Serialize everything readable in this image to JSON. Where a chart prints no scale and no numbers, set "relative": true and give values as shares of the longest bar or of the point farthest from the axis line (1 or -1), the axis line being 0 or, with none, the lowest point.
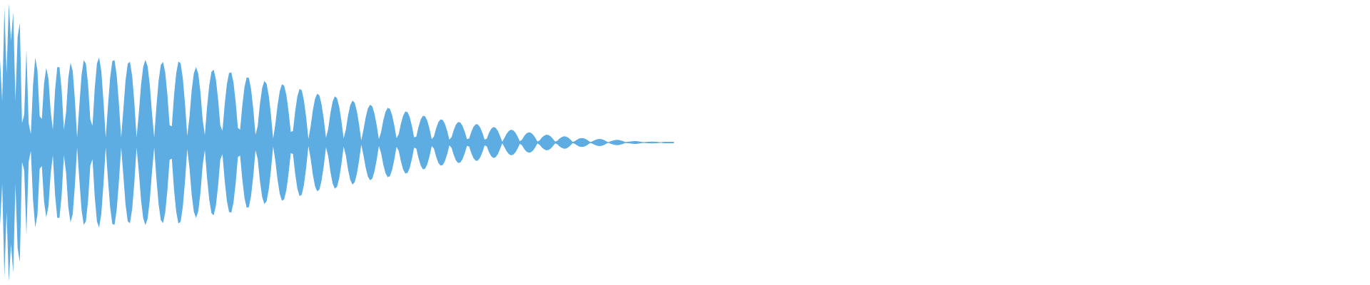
{
  "chart_data": {
    "type": "area",
    "relative": true,
    "categories": [
      null,
      null,
      null,
      null,
      null,
      null,
      null,
      null,
      null,
      null,
      null,
      null,
      null,
      null,
      null,
      null,
      null,
      null,
      null,
      null,
      null,
      null,
      null,
      null,
      null,
      null,
      null,
      null,
      null,
      null,
      null,
      null,
      null,
      null,
      null,
      null,
      null,
      null,
      null,
      null,
      null,
      null,
      null,
      null,
      null,
      null,
      null,
      null,
      null,
      null,
      null,
      null,
      null,
      null,
      null,
      null,
      null,
      null,
      null,
      null,
      null,
      null,
      null,
      null,
      null,
      null,
      null,
      null,
      null,
      null,
      null,
      null,
      null,
      null,
      null,
      null,
      null,
      null,
      null,
      null,
      null,
      null,
      null,
      null,
      null,
      null,
      null,
      null,
      null,
      null,
      null,
      null,
      null,
      null,
      null,
      null,
      null,
      null,
      null,
      null,
      null,
      null,
      null,
      null,
      null,
      null,
      null,
      null,
      null,
      null,
      null,
      null,
      null,
      null,
      null,
      null,
      null,
      null,
      null,
      null,
      null,
      null,
      null,
      null,
      null,
      null,
      null,
      null,
      null,
      null,
      null,
      null,
      null,
      null,
      null,
      null,
      null,
      null,
      null,
      null,
      null,
      null,
      null,
      null,
      null,
      null,
      null,
      null,
      null,
      null,
      null,
      null,
      null,
      null,
      null,
      null,
      null,
      null,
      null,
      null,
      null,
      null,
      null,
      null,
      null,
      null,
      null,
      null,
      null,
      null,
      null,
      null,
      null,
      null,
      null,
      null,
      null,
      null,
      null,
      null,
      null,
      null,
      null,
      null,
      null,
      null,
      null,
      null,
      null,
      null,
      null,
      null,
      null,
      null,
      null,
      null,
      null,
      null,
      null,
      null,
      null,
      null,
      null,
      null,
      null,
      null,
      null,
      null,
      null,
      null,
      null,
      null,
      null,
      null,
      null,
      null,
      null,
      null,
      null,
      null,
      null,
      null,
      null,
      null,
      null,
      null,
      null,
      null,
      null,
      null,
      null,
      null,
      null,
      null,
      null,
      null,
      null,
      null,
      null,
      null,
      null,
      null,
      null,
      null,
      null,
      null,
      null,
      null,
      null,
      null,
      null,
      null,
      null,
      null,
      null,
      null,
      null,
      null,
      null,
      null,
      null,
      null,
      null,
      null,
      null,
      null,
      null,
      null,
      null,
      null,
      null,
      null,
      null,
      null,
      null,
      null,
      null,
      null,
      null,
      null,
      null,
      null,
      null,
      null,
      null,
      null,
      null,
      null,
      null,
      null,
      null,
      null,
      null,
      null,
      null,
      null,
      null,
      null,
      null,
      null,
      null,
      null,
      null,
      null,
      null,
      null,
      null
    ],
    "series": [
      {
        "color": "#5dade2",
        "values": [
          0.6,
          0.3,
          0.97,
          0.5,
          1.0,
          0.73,
          0.94,
          0.3,
          0.76,
          0.86,
          0.14,
          0.2,
          0.67,
          0.14,
          0.06,
          0.415,
          0.61,
          0.52,
          0.19,
          0.169,
          0.426,
          0.538,
          0.461,
          0.224,
          0.092,
          0.377,
          0.543,
          0.543,
          0.377,
          0.092,
          0.218,
          0.464,
          0.574,
          0.517,
          0.309,
          0.036,
          0.262,
          0.482,
          0.593,
          0.568,
          0.414,
          0.166,
          0.121,
          0.388,
          0.568,
          0.613,
          0.513,
          0.291,
          0.036,
          0.261,
          0.466,
          0.587,
          0.593,
          0.482,
          0.277,
          0.036,
          0.239,
          0.448,
          0.568,
          0.581,
          0.48,
          0.286,
          0.036,
          0.206,
          0.409,
          0.544,
          0.595,
          0.55,
          0.415,
          0.213,
          0.036,
          0.257,
          0.444,
          0.558,
          0.581,
          0.505,
          0.344,
          0.125,
          0.117,
          0.338,
          0.499,
          0.583,
          0.57,
          0.462,
          0.278,
          0.046,
          0.18,
          0.373,
          0.498,
          0.544,
          0.495,
          0.362,
          0.166,
          0.054,
          0.256,
          0.412,
          0.509,
          0.524,
          0.455,
          0.314,
          0.123,
          0.085,
          0.274,
          0.421,
          0.5,
          0.505,
          0.432,
          0.29,
          0.105,
          0.093,
          0.265,
          0.4,
          0.47,
          0.464,
          0.382,
          0.238,
          0.056,
          0.119,
          0.277,
          0.391,
          0.443,
          0.424,
          0.339,
          0.2,
          0.028,
          0.132,
          0.267,
          0.369,
          0.419,
          0.409,
          0.342,
          0.225,
          0.077,
          0.082,
          0.223,
          0.332,
          0.386,
          0.376,
          0.302,
          0.179,
          0.026,
          0.113,
          0.229,
          0.314,
          0.352,
          0.338,
          0.272,
          0.167,
          0.035,
          0.097,
          0.212,
          0.295,
          0.332,
          0.319,
          0.257,
          0.155,
          0.029,
          0.092,
          0.194,
          0.269,
          0.302,
          0.287,
          0.227,
          0.132,
          0.015,
          0.091,
          0.18,
          0.245,
          0.272,
          0.26,
          0.208,
          0.126,
          0.024,
          0.075,
          0.158,
          0.22,
          0.25,
          0.242,
          0.197,
          0.124,
          0.031,
          0.059,
          0.135,
          0.193,
          0.223,
          0.219,
          0.183,
          0.118,
          0.037,
          0.043,
          0.113,
          0.166,
          0.193,
          0.189,
          0.156,
          0.099,
          0.025,
          0.044,
          0.103,
          0.146,
          0.167,
          0.162,
          0.133,
          0.084,
          0.021,
          0.039,
          0.09,
          0.129,
          0.147,
          0.144,
          0.119,
          0.077,
          0.024,
          0.03,
          0.078,
          0.114,
          0.132,
          0.13,
          0.108,
          0.07,
          0.02,
          0.028,
          0.069,
          0.099,
          0.112,
          0.107,
          0.085,
          0.048,
          0.005,
          0.033,
          0.063,
          0.083,
          0.092,
          0.087,
          0.071,
          0.043,
          0.009,
          0.021,
          0.047,
          0.065,
          0.073,
          0.07,
          0.057,
          0.035,
          0.007,
          0.016,
          0.036,
          0.049,
          0.056,
          0.054,
          0.044,
          0.027,
          0.006,
          0.013,
          0.028,
          0.039,
          0.045,
          0.043,
          0.035,
          0.021,
          0.004,
          0.01,
          0.021,
          0.029,
          0.032,
          0.031,
          0.024,
          0.014,
          0.002,
          0.009,
          0.017,
          0.023,
          0.026,
          0.024,
          0.019,
          0.011,
          0.001,
          0.007,
          0.013,
          0.017,
          0.019,
          0.018,
          0.014,
          0.009,
          0.002,
          0.005,
          0.007,
          0.009,
          0.01,
          0.01,
          0.008,
          0.005,
          0.001,
          0.003,
          0.005,
          0.006,
          0.007,
          0.006,
          0.005,
          0.003,
          0,
          0.004,
          0.005,
          0.005,
          0.005,
          0.005,
          0.004
        ]
      },
      {
        "color": "#5dade2",
        "values": [
          -0.6,
          -0.3,
          -0.97,
          -0.5,
          -1.0,
          -0.73,
          -0.94,
          -0.3,
          -0.76,
          -0.86,
          -0.14,
          -0.2,
          -0.67,
          -0.14,
          -0.06,
          -0.415,
          -0.61,
          -0.52,
          -0.19,
          -0.169,
          -0.426,
          -0.538,
          -0.461,
          -0.224,
          -0.092,
          -0.377,
          -0.543,
          -0.543,
          -0.377,
          -0.092,
          -0.218,
          -0.464,
          -0.574,
          -0.517,
          -0.309,
          -0.036,
          -0.262,
          -0.482,
          -0.593,
          -0.568,
          -0.414,
          -0.166,
          -0.121,
          -0.388,
          -0.568,
          -0.613,
          -0.513,
          -0.291,
          -0.036,
          -0.261,
          -0.466,
          -0.587,
          -0.593,
          -0.482,
          -0.277,
          -0.036,
          -0.239,
          -0.448,
          -0.568,
          -0.581,
          -0.48,
          -0.286,
          -0.036,
          -0.206,
          -0.409,
          -0.544,
          -0.595,
          -0.55,
          -0.415,
          -0.213,
          -0.036,
          -0.257,
          -0.444,
          -0.558,
          -0.581,
          -0.505,
          -0.344,
          -0.125,
          -0.117,
          -0.338,
          -0.499,
          -0.583,
          -0.57,
          -0.462,
          -0.278,
          -0.046,
          -0.18,
          -0.373,
          -0.498,
          -0.544,
          -0.495,
          -0.362,
          -0.166,
          -0.054,
          -0.256,
          -0.412,
          -0.509,
          -0.524,
          -0.455,
          -0.314,
          -0.123,
          -0.085,
          -0.274,
          -0.421,
          -0.5,
          -0.505,
          -0.432,
          -0.29,
          -0.105,
          -0.093,
          -0.265,
          -0.4,
          -0.47,
          -0.464,
          -0.382,
          -0.238,
          -0.056,
          -0.119,
          -0.277,
          -0.391,
          -0.443,
          -0.424,
          -0.339,
          -0.2,
          -0.028,
          -0.132,
          -0.267,
          -0.369,
          -0.419,
          -0.409,
          -0.342,
          -0.225,
          -0.077,
          -0.082,
          -0.223,
          -0.332,
          -0.386,
          -0.376,
          -0.302,
          -0.179,
          -0.026,
          -0.113,
          -0.229,
          -0.314,
          -0.352,
          -0.338,
          -0.272,
          -0.167,
          -0.035,
          -0.097,
          -0.212,
          -0.295,
          -0.332,
          -0.319,
          -0.257,
          -0.155,
          -0.029,
          -0.092,
          -0.194,
          -0.269,
          -0.302,
          -0.287,
          -0.227,
          -0.132,
          -0.015,
          -0.091,
          -0.18,
          -0.245,
          -0.272,
          -0.26,
          -0.208,
          -0.126,
          -0.024,
          -0.075,
          -0.158,
          -0.22,
          -0.25,
          -0.242,
          -0.197,
          -0.124,
          -0.031,
          -0.059,
          -0.135,
          -0.193,
          -0.223,
          -0.219,
          -0.183,
          -0.118,
          -0.037,
          -0.043,
          -0.113,
          -0.166,
          -0.193,
          -0.189,
          -0.156,
          -0.099,
          -0.025,
          -0.044,
          -0.103,
          -0.146,
          -0.167,
          -0.162,
          -0.133,
          -0.084,
          -0.021,
          -0.039,
          -0.09,
          -0.129,
          -0.147,
          -0.144,
          -0.119,
          -0.077,
          -0.024,
          -0.03,
          -0.078,
          -0.114,
          -0.132,
          -0.13,
          -0.108,
          -0.07,
          -0.02,
          -0.028,
          -0.069,
          -0.099,
          -0.112,
          -0.107,
          -0.085,
          -0.048,
          -0.005,
          -0.033,
          -0.063,
          -0.083,
          -0.092,
          -0.087,
          -0.071,
          -0.043,
          -0.009,
          -0.021,
          -0.047,
          -0.065,
          -0.073,
          -0.07,
          -0.057,
          -0.035,
          -0.007,
          -0.016,
          -0.036,
          -0.049,
          -0.056,
          -0.054,
          -0.044,
          -0.027,
          -0.006,
          -0.013,
          -0.028,
          -0.039,
          -0.045,
          -0.043,
          -0.035,
          -0.021,
          -0.004,
          -0.01,
          -0.021,
          -0.029,
          -0.032,
          -0.031,
          -0.024,
          -0.014,
          -0.002,
          -0.009,
          -0.017,
          -0.023,
          -0.026,
          -0.024,
          -0.019,
          -0.011,
          -0.001,
          -0.007,
          -0.013,
          -0.017,
          -0.019,
          -0.018,
          -0.014,
          -0.009,
          -0.002,
          -0.005,
          -0.007,
          -0.009,
          -0.01,
          -0.01,
          -0.008,
          -0.005,
          -0.001,
          -0.003,
          -0.005,
          -0.006,
          -0.007,
          -0.006,
          -0.005,
          -0.003,
          0,
          -0.004,
          -0.005,
          -0.005,
          -0.005,
          -0.005,
          -0.004
        ]
      }
    ]
  }
}
